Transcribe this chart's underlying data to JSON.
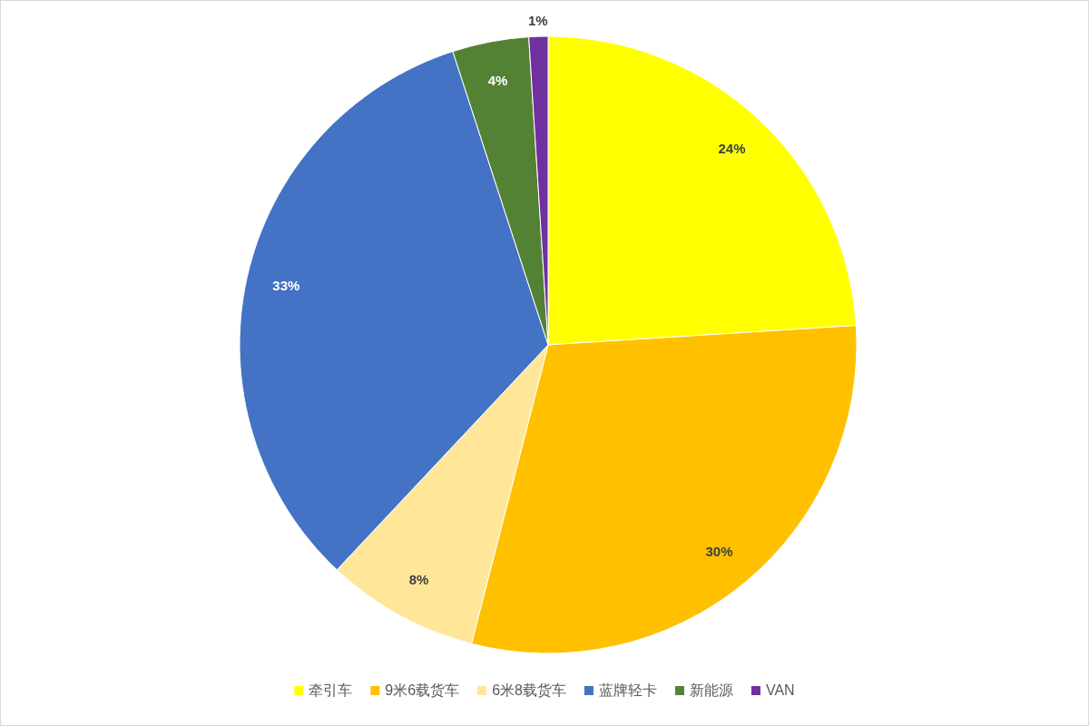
{
  "chart_data": {
    "type": "pie",
    "categories": [
      "牵引车",
      "9米6载货车",
      "6米8载货车",
      "蓝牌轻卡",
      "新能源",
      "VAN"
    ],
    "values": [
      24,
      30,
      8,
      33,
      4,
      1
    ],
    "colors": [
      "#ffff00",
      "#ffc000",
      "#ffe699",
      "#4472c4",
      "#548235",
      "#7030a0"
    ],
    "value_labels": [
      "24%",
      "30%",
      "8%",
      "33%",
      "4%",
      "1%"
    ],
    "legend": "bottom"
  }
}
